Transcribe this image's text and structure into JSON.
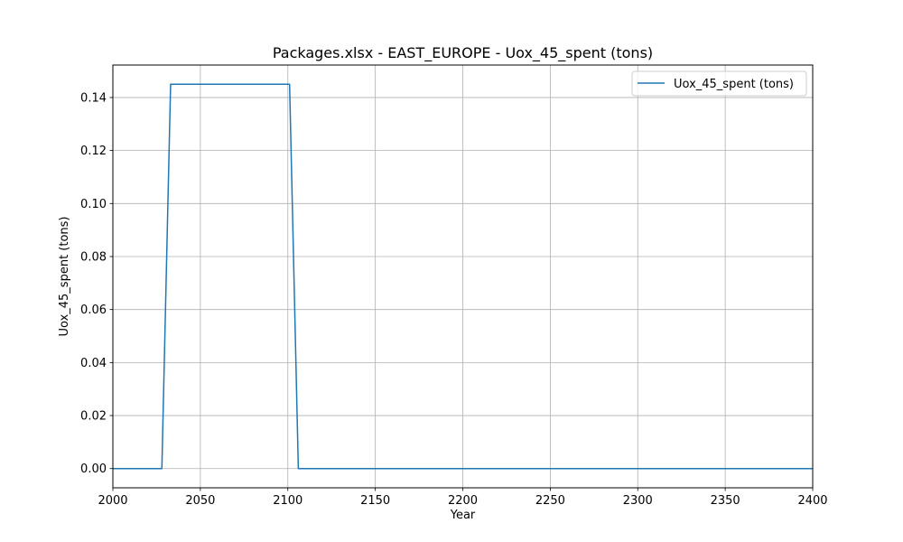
{
  "chart_data": {
    "type": "line",
    "title": "Packages.xlsx - EAST_EUROPE - Uox_45_spent (tons)",
    "xlabel": "Year",
    "ylabel": "Uox_45_spent (tons)",
    "xlim": [
      2000,
      2400
    ],
    "ylim": [
      -0.00725,
      0.15225
    ],
    "grid": true,
    "legend_position": "top-right",
    "x_ticks": [
      2000,
      2050,
      2100,
      2150,
      2200,
      2250,
      2300,
      2350,
      2400
    ],
    "x_tick_labels": [
      "2000",
      "2050",
      "2100",
      "2150",
      "2200",
      "2250",
      "2300",
      "2350",
      "2400"
    ],
    "y_ticks": [
      0,
      0.02,
      0.04,
      0.06,
      0.08,
      0.1,
      0.12,
      0.14
    ],
    "y_tick_labels": [
      "0.00",
      "0.02",
      "0.04",
      "0.06",
      "0.08",
      "0.10",
      "0.12",
      "0.14"
    ],
    "series": [
      {
        "name": "Uox_45_spent (tons)",
        "color": "#1f77b4",
        "x": [
          2000,
          2028,
          2033,
          2101,
          2106,
          2400
        ],
        "y": [
          0,
          0,
          0.145,
          0.145,
          0,
          0
        ]
      }
    ]
  }
}
